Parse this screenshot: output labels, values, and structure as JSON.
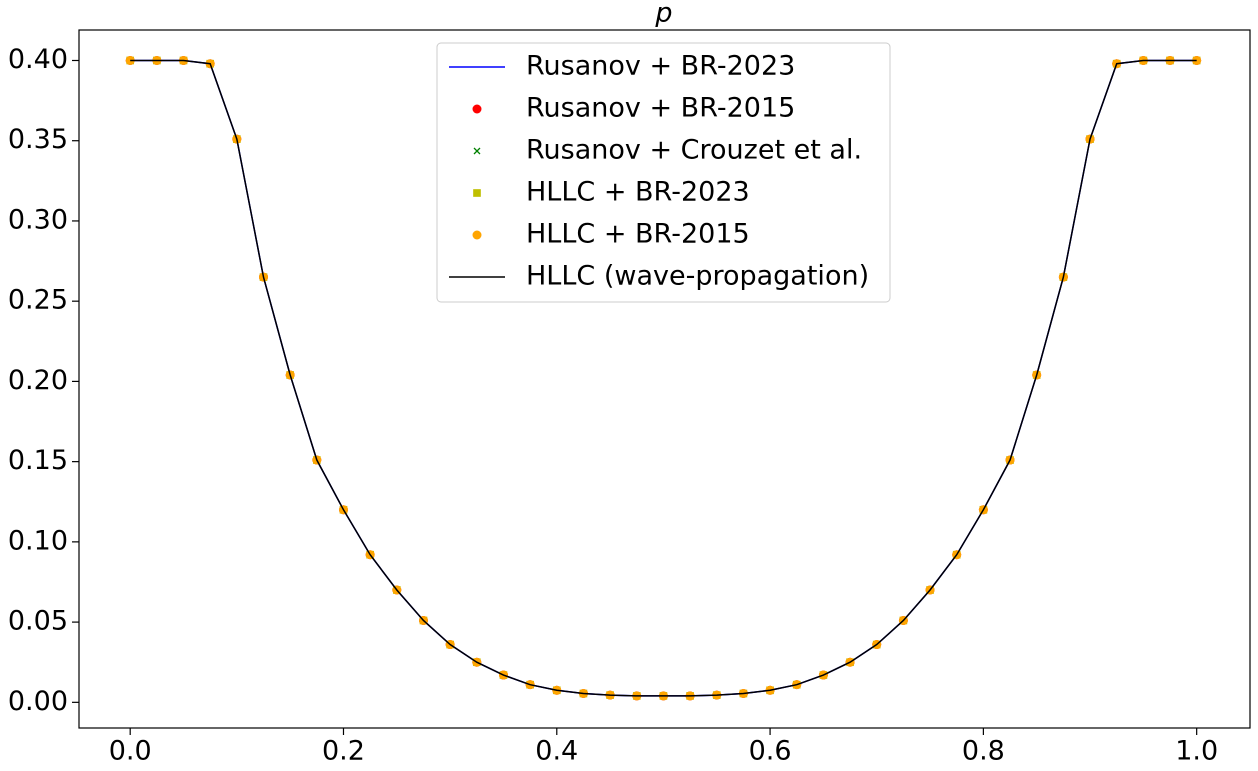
{
  "chart_data": {
    "type": "line",
    "title": "p",
    "x": [
      0,
      0.025,
      0.05,
      0.075,
      0.1,
      0.125,
      0.15,
      0.175,
      0.2,
      0.225,
      0.25,
      0.275,
      0.3,
      0.325,
      0.35,
      0.375,
      0.4,
      0.425,
      0.45,
      0.475,
      0.5,
      0.525,
      0.55,
      0.575,
      0.6,
      0.625,
      0.65,
      0.675,
      0.7,
      0.725,
      0.75,
      0.775,
      0.8,
      0.825,
      0.85,
      0.875,
      0.9,
      0.925,
      0.95,
      0.975,
      1.0
    ],
    "series": [
      {
        "name": "Rusanov + BR-2023",
        "color": "#0000ff",
        "marker": "line",
        "values": [
          0.4,
          0.4,
          0.4,
          0.398,
          0.351,
          0.265,
          0.204,
          0.151,
          0.12,
          0.092,
          0.07,
          0.051,
          0.036,
          0.025,
          0.017,
          0.011,
          0.0075,
          0.0055,
          0.0045,
          0.004,
          0.004,
          0.004,
          0.0045,
          0.0055,
          0.0075,
          0.011,
          0.017,
          0.025,
          0.036,
          0.051,
          0.07,
          0.092,
          0.12,
          0.151,
          0.204,
          0.265,
          0.351,
          0.398,
          0.4,
          0.4,
          0.4
        ]
      },
      {
        "name": "Rusanov + BR-2015",
        "color": "#ff0000",
        "marker": "circle",
        "values": [
          0.4,
          0.4,
          0.4,
          0.398,
          0.351,
          0.265,
          0.204,
          0.151,
          0.12,
          0.092,
          0.07,
          0.051,
          0.036,
          0.025,
          0.017,
          0.011,
          0.0075,
          0.0055,
          0.0045,
          0.004,
          0.004,
          0.004,
          0.0045,
          0.0055,
          0.0075,
          0.011,
          0.017,
          0.025,
          0.036,
          0.051,
          0.07,
          0.092,
          0.12,
          0.151,
          0.204,
          0.265,
          0.351,
          0.398,
          0.4,
          0.4,
          0.4
        ]
      },
      {
        "name": "Rusanov + Crouzet et al.",
        "color": "#008000",
        "marker": "x",
        "values": [
          0.4,
          0.4,
          0.4,
          0.398,
          0.351,
          0.265,
          0.204,
          0.151,
          0.12,
          0.092,
          0.07,
          0.051,
          0.036,
          0.025,
          0.017,
          0.011,
          0.0075,
          0.0055,
          0.0045,
          0.004,
          0.004,
          0.004,
          0.0045,
          0.0055,
          0.0075,
          0.011,
          0.017,
          0.025,
          0.036,
          0.051,
          0.07,
          0.092,
          0.12,
          0.151,
          0.204,
          0.265,
          0.351,
          0.398,
          0.4,
          0.4,
          0.4
        ]
      },
      {
        "name": "HLLC + BR-2023",
        "color": "#bfbf00",
        "marker": "square",
        "values": [
          0.4,
          0.4,
          0.4,
          0.398,
          0.351,
          0.265,
          0.204,
          0.151,
          0.12,
          0.092,
          0.07,
          0.051,
          0.036,
          0.025,
          0.017,
          0.011,
          0.0075,
          0.0055,
          0.0045,
          0.004,
          0.004,
          0.004,
          0.0045,
          0.0055,
          0.0075,
          0.011,
          0.017,
          0.025,
          0.036,
          0.051,
          0.07,
          0.092,
          0.12,
          0.151,
          0.204,
          0.265,
          0.351,
          0.398,
          0.4,
          0.4,
          0.4
        ]
      },
      {
        "name": "HLLC + BR-2015",
        "color": "#ffa500",
        "marker": "circle",
        "values": [
          0.4,
          0.4,
          0.4,
          0.398,
          0.351,
          0.265,
          0.204,
          0.151,
          0.12,
          0.092,
          0.07,
          0.051,
          0.036,
          0.025,
          0.017,
          0.011,
          0.0075,
          0.0055,
          0.0045,
          0.004,
          0.004,
          0.004,
          0.0045,
          0.0055,
          0.0075,
          0.011,
          0.017,
          0.025,
          0.036,
          0.051,
          0.07,
          0.092,
          0.12,
          0.151,
          0.204,
          0.265,
          0.351,
          0.398,
          0.4,
          0.4,
          0.4
        ]
      },
      {
        "name": "HLLC (wave-propagation)",
        "color": "#000000",
        "marker": "line",
        "values": [
          0.4,
          0.4,
          0.4,
          0.398,
          0.351,
          0.265,
          0.204,
          0.151,
          0.12,
          0.092,
          0.07,
          0.051,
          0.036,
          0.025,
          0.017,
          0.011,
          0.0075,
          0.0055,
          0.0045,
          0.004,
          0.004,
          0.004,
          0.0045,
          0.0055,
          0.0075,
          0.011,
          0.017,
          0.025,
          0.036,
          0.051,
          0.07,
          0.092,
          0.12,
          0.151,
          0.204,
          0.265,
          0.351,
          0.398,
          0.4,
          0.4,
          0.4
        ]
      }
    ],
    "xlim": [
      -0.048,
      1.05
    ],
    "ylim": [
      -0.016,
      0.419
    ],
    "xticks": [
      {
        "value": 0,
        "label": "0.0"
      },
      0.2,
      0.4,
      0.6,
      0.8,
      {
        "value": 1,
        "label": "1.0"
      }
    ],
    "yticks": [
      {
        "value": 0,
        "label": "0.00"
      },
      {
        "value": 0.05,
        "label": "0.05"
      },
      {
        "value": 0.1,
        "label": "0.10"
      },
      {
        "value": 0.15,
        "label": "0.15"
      },
      {
        "value": 0.2,
        "label": "0.20"
      },
      {
        "value": 0.25,
        "label": "0.25"
      },
      {
        "value": 0.3,
        "label": "0.30"
      },
      {
        "value": 0.35,
        "label": "0.35"
      },
      {
        "value": 0.4,
        "label": "0.40"
      }
    ],
    "legend": "upper center"
  }
}
